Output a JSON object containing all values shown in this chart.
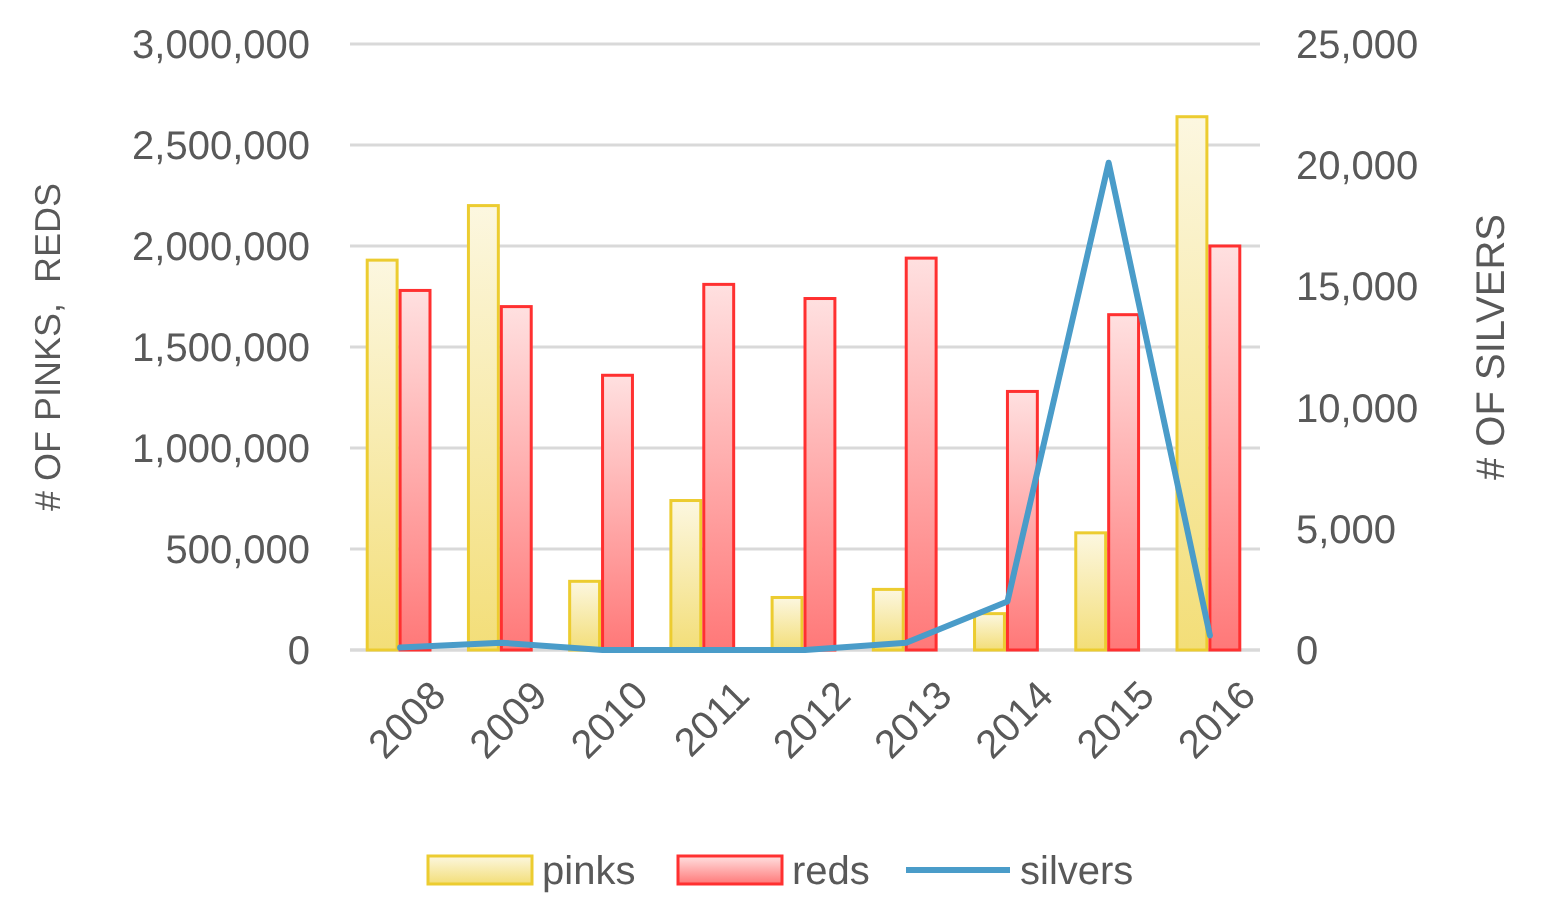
{
  "chart_data": {
    "type": "bar",
    "ylabel": "# OF PINKS,  REDS",
    "y2label": "# OF SILVERS",
    "categories": [
      "2008",
      "2009",
      "2010",
      "2011",
      "2012",
      "2013",
      "2014",
      "2015",
      "2016"
    ],
    "series": [
      {
        "name": "pinks",
        "color": "#eccc30",
        "values": [
          1930000,
          2200000,
          340000,
          740000,
          260000,
          300000,
          180000,
          580000,
          2640000
        ]
      },
      {
        "name": "reds",
        "color": "#ff3030",
        "values": [
          1780000,
          1700000,
          1360000,
          1810000,
          1740000,
          1940000,
          1280000,
          1660000,
          2000000
        ]
      },
      {
        "name": "silvers",
        "type": "line",
        "axis": "y2",
        "color": "#4a9cc9",
        "values": [
          100,
          300,
          0,
          0,
          0,
          300,
          2000,
          20100,
          600
        ]
      }
    ],
    "ylim": [
      0,
      3000000
    ],
    "yticks": [
      {
        "value": 0,
        "label": "0"
      },
      {
        "value": 500000,
        "label": "500,000"
      },
      {
        "value": 1000000,
        "label": "1,000,000"
      },
      {
        "value": 1500000,
        "label": "1,500,000"
      },
      {
        "value": 2000000,
        "label": "2,000,000"
      },
      {
        "value": 2500000,
        "label": "2,500,000"
      },
      {
        "value": 3000000,
        "label": "3,000,000"
      }
    ],
    "y2lim": [
      0,
      25000
    ],
    "y2ticks": [
      {
        "value": 0,
        "label": "0"
      },
      {
        "value": 5000,
        "label": "5,000"
      },
      {
        "value": 10000,
        "label": "10,000"
      },
      {
        "value": 15000,
        "label": "15,000"
      },
      {
        "value": 20000,
        "label": "20,000"
      },
      {
        "value": 25000,
        "label": "25,000"
      }
    ],
    "grid": "y",
    "legend": "bottom",
    "marker": "none",
    "line_style": "solid"
  }
}
